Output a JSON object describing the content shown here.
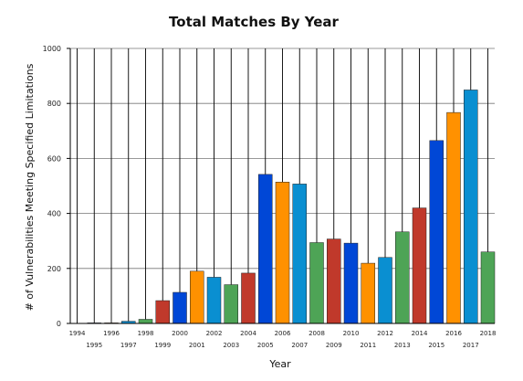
{
  "chart_data": {
    "type": "bar",
    "title": "Total Matches By Year",
    "xlabel": "Year",
    "ylabel": "# of Vulnerabilities Meeting Specified Limitations",
    "ylim": [
      0,
      1000
    ],
    "yticks": [
      0,
      200,
      400,
      600,
      800,
      1000
    ],
    "grid": true,
    "categories": [
      "1994",
      "1995",
      "1996",
      "1997",
      "1998",
      "1999",
      "2000",
      "2001",
      "2002",
      "2003",
      "2004",
      "2005",
      "2006",
      "2007",
      "2008",
      "2009",
      "2010",
      "2011",
      "2012",
      "2013",
      "2014",
      "2015",
      "2016",
      "2017",
      "2018"
    ],
    "values": [
      0,
      2,
      2,
      8,
      15,
      83,
      113,
      190,
      168,
      141,
      183,
      542,
      514,
      507,
      294,
      307,
      292,
      219,
      240,
      333,
      420,
      665,
      767,
      849,
      260
    ],
    "colors": [
      "#c0392b",
      "#0047d6",
      "#ff9100",
      "#0a8fd1",
      "#4ea456",
      "#c0392b",
      "#0047d6",
      "#ff9100",
      "#0a8fd1",
      "#4ea456",
      "#c0392b",
      "#0047d6",
      "#ff9100",
      "#0a8fd1",
      "#4ea456",
      "#c0392b",
      "#0047d6",
      "#ff9100",
      "#0a8fd1",
      "#4ea456",
      "#c0392b",
      "#0047d6",
      "#ff9100",
      "#0a8fd1",
      "#4ea456"
    ]
  }
}
